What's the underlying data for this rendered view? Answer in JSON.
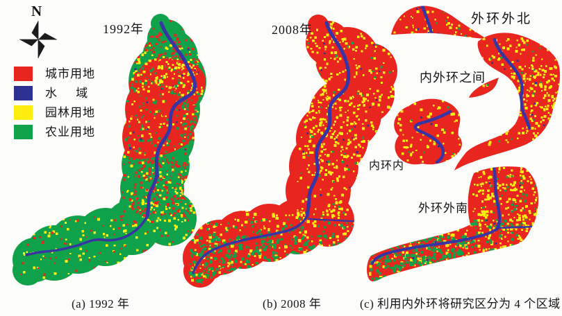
{
  "figure": {
    "compass_label": "N",
    "colors": {
      "urban": "#E8251F",
      "water": "#2E3192",
      "garden": "#FFEC11",
      "agriculture": "#10A24A",
      "river": "#3834A3",
      "text": "#141414"
    },
    "legend": {
      "items": [
        {
          "label": "城市用地",
          "color": "#E8251F"
        },
        {
          "label": "水     域",
          "color": "#2E3192"
        },
        {
          "label": "园林用地",
          "color": "#FFEC11"
        },
        {
          "label": "农业用地",
          "color": "#10A24A"
        }
      ]
    },
    "panels": [
      {
        "id": "a",
        "title": "1992年",
        "caption": "(a) 1992 年"
      },
      {
        "id": "b",
        "title": "2008年",
        "caption": "(b) 2008 年"
      },
      {
        "id": "c",
        "caption": "(c) 利用内外环将研究区分为 4 个区域",
        "region_labels": [
          "外环外北",
          "内外环之间",
          "内环内",
          "外环外南"
        ]
      }
    ]
  }
}
